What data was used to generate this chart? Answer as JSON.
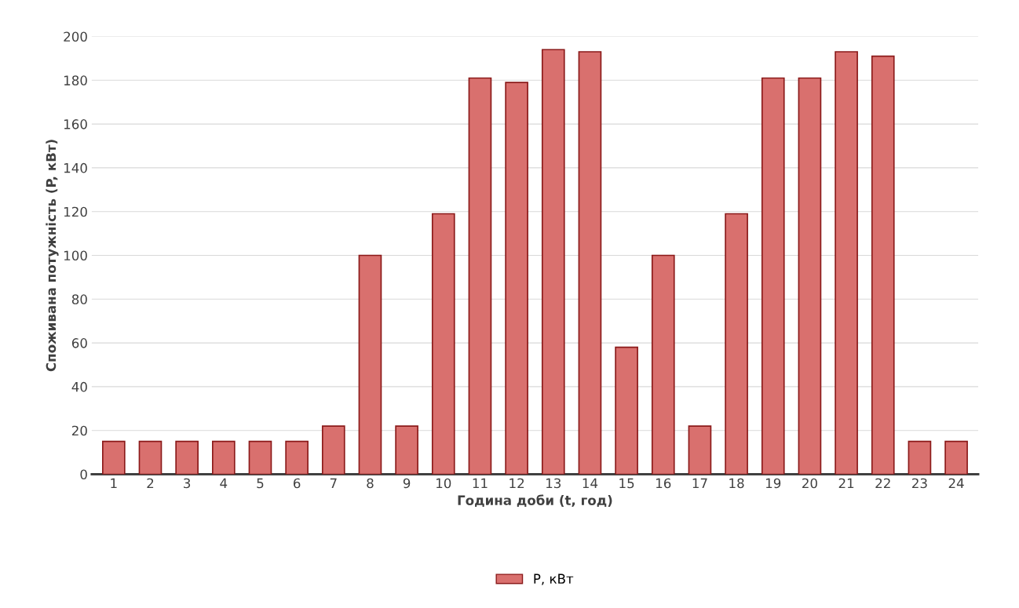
{
  "chart_data": {
    "type": "bar",
    "xlabel": "Година доби (t, год)",
    "ylabel": "Споживана потужність (P, кВт)",
    "categories": [
      "1",
      "2",
      "3",
      "4",
      "5",
      "6",
      "7",
      "8",
      "9",
      "10",
      "11",
      "12",
      "13",
      "14",
      "15",
      "16",
      "17",
      "18",
      "19",
      "20",
      "21",
      "22",
      "23",
      "24"
    ],
    "series": [
      {
        "name": "P, кВт",
        "color": "#d9706e",
        "values": [
          15,
          15,
          15,
          15,
          15,
          15,
          22,
          100,
          22,
          119,
          181,
          179,
          194,
          193,
          58,
          100,
          22,
          119,
          181,
          181,
          193,
          191,
          15,
          15
        ]
      }
    ],
    "ylim": [
      0,
      200
    ],
    "yticks": [
      0,
      20,
      40,
      60,
      80,
      100,
      120,
      140,
      160,
      180,
      200
    ],
    "grid": "y",
    "legend": "bottom"
  }
}
